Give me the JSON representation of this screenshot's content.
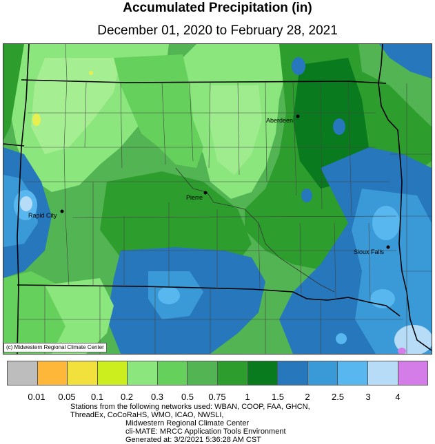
{
  "title": "Accumulated Precipitation (in)",
  "subtitle": "December 01, 2020 to February 28, 2021",
  "copyright": "(c) Midwestern Regional Climate Center",
  "cities": [
    {
      "name": "Aberdeen"
    },
    {
      "name": "Pierre"
    },
    {
      "name": "Rapid City"
    },
    {
      "name": "Sioux Falls"
    }
  ],
  "legend": {
    "colors": [
      "#bdbdbd",
      "#ffb73a",
      "#f2e13c",
      "#cdee1e",
      "#8ae67d",
      "#66d05c",
      "#52b452",
      "#2d9e2d",
      "#0a7a1e",
      "#2677bc",
      "#3a9ad8",
      "#58b7ee",
      "#b7dcf8",
      "#d47de8"
    ],
    "labels": [
      "0.01",
      "0.05",
      "0.1",
      "0.2",
      "0.3",
      "0.5",
      "0.75",
      "1",
      "1.5",
      "2",
      "2.5",
      "3",
      "4"
    ]
  },
  "footer": {
    "line1": "Stations from the following networks used: WBAN, COOP, FAA, GHCN,",
    "line2": "ThreadEx, CoCoRaHS, WMO, ICAO, NWSLI,",
    "line3": "Midwestern Regional Climate Center",
    "line4": "cli-MATE: MRCC Application Tools Environment",
    "line5": "Generated at: 3/2/2021 5:36:28 AM CST"
  }
}
